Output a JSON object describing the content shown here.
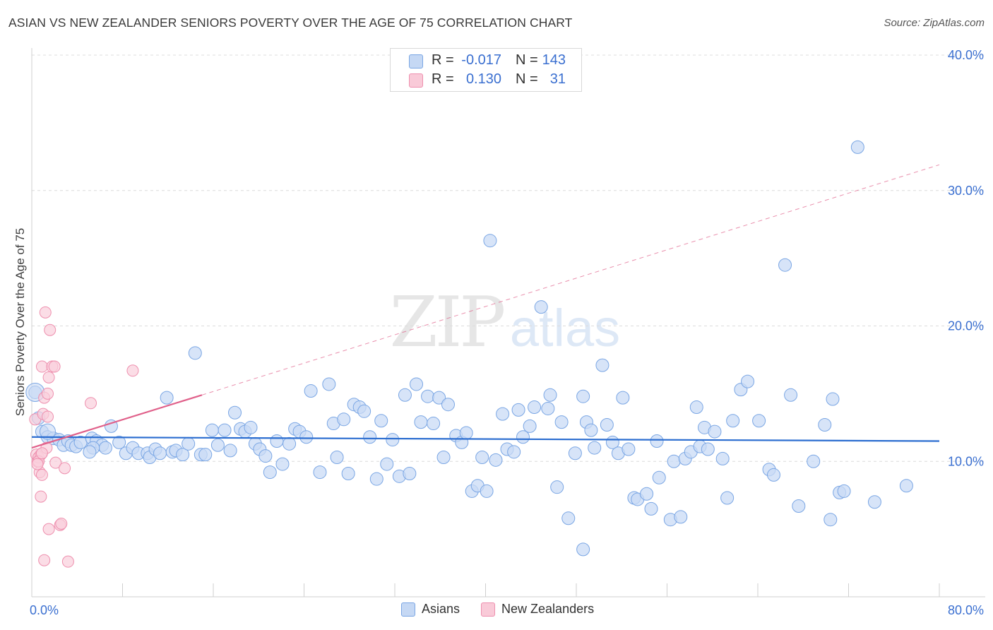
{
  "title": "ASIAN VS NEW ZEALANDER SENIORS POVERTY OVER THE AGE OF 75 CORRELATION CHART",
  "source": "Source: ZipAtlas.com",
  "watermark": {
    "zip": "ZIP",
    "atlas": "atlas"
  },
  "stats": {
    "asians": {
      "r_label": "R =",
      "r": "-0.017",
      "n_label": "N =",
      "n": "143",
      "color": "#7aa6e4"
    },
    "nz": {
      "r_label": "R =",
      "r": "0.130",
      "n_label": "N =",
      "n": "31",
      "color": "#ee8fae"
    }
  },
  "legend": {
    "asians": "Asians",
    "nz": "New Zealanders"
  },
  "chart_data": {
    "type": "scatter",
    "ylabel": "Seniors Poverty Over the Age of 75",
    "xlim": [
      0,
      80
    ],
    "ylim": [
      0,
      40
    ],
    "x_tick_labels": {
      "0": "0.0%",
      "80": "80.0%"
    },
    "y_tick_labels": {
      "10": "10.0%",
      "20": "20.0%",
      "30": "30.0%",
      "40": "40.0%"
    },
    "colors": {
      "asians": "#7aa6e4",
      "asians_line": "#2b6dd0",
      "nz": "#ee8fae",
      "nz_line": "#e0608a"
    },
    "series": [
      {
        "name": "Asians",
        "trend": {
          "x0": 0,
          "y0": 11.8,
          "x1": 80,
          "y1": 11.5
        },
        "points": [
          [
            0.3,
            15.1
          ],
          [
            0.6,
            13.2
          ],
          [
            0.9,
            12.2
          ],
          [
            1.4,
            11.8
          ],
          [
            1.9,
            11.7
          ],
          [
            2.4,
            11.6
          ],
          [
            2.8,
            11.2
          ],
          [
            3.2,
            11.5
          ],
          [
            3.5,
            11.2
          ],
          [
            3.9,
            11.1
          ],
          [
            4.3,
            11.4
          ],
          [
            5.3,
            11.7
          ],
          [
            5.7,
            11.5
          ],
          [
            6.2,
            11.2
          ],
          [
            6.5,
            11.0
          ],
          [
            5.4,
            11.0
          ],
          [
            5.1,
            10.7
          ],
          [
            7.0,
            12.6
          ],
          [
            7.7,
            11.4
          ],
          [
            8.3,
            10.6
          ],
          [
            8.9,
            11.0
          ],
          [
            9.4,
            10.6
          ],
          [
            10.2,
            10.6
          ],
          [
            10.4,
            10.3
          ],
          [
            10.9,
            10.9
          ],
          [
            11.3,
            10.6
          ],
          [
            11.9,
            14.7
          ],
          [
            12.4,
            10.7
          ],
          [
            12.7,
            10.8
          ],
          [
            13.3,
            10.5
          ],
          [
            13.8,
            11.3
          ],
          [
            14.4,
            18.0
          ],
          [
            14.9,
            10.5
          ],
          [
            15.3,
            10.5
          ],
          [
            15.9,
            12.3
          ],
          [
            16.4,
            11.2
          ],
          [
            17.0,
            12.3
          ],
          [
            17.5,
            10.8
          ],
          [
            17.9,
            13.6
          ],
          [
            18.4,
            12.4
          ],
          [
            18.8,
            12.2
          ],
          [
            19.3,
            12.5
          ],
          [
            19.7,
            11.3
          ],
          [
            20.1,
            10.9
          ],
          [
            20.6,
            10.4
          ],
          [
            21.0,
            9.2
          ],
          [
            21.6,
            11.5
          ],
          [
            22.1,
            9.8
          ],
          [
            22.7,
            11.3
          ],
          [
            23.2,
            12.4
          ],
          [
            23.6,
            12.2
          ],
          [
            24.2,
            11.8
          ],
          [
            24.6,
            15.2
          ],
          [
            25.4,
            9.2
          ],
          [
            26.2,
            15.7
          ],
          [
            26.6,
            12.8
          ],
          [
            26.9,
            10.3
          ],
          [
            27.5,
            13.1
          ],
          [
            27.9,
            9.1
          ],
          [
            28.4,
            14.2
          ],
          [
            28.9,
            14.0
          ],
          [
            29.3,
            13.7
          ],
          [
            29.8,
            11.8
          ],
          [
            30.4,
            8.7
          ],
          [
            30.8,
            13.0
          ],
          [
            31.3,
            9.8
          ],
          [
            31.8,
            11.6
          ],
          [
            32.4,
            8.9
          ],
          [
            32.9,
            14.9
          ],
          [
            33.3,
            9.1
          ],
          [
            33.9,
            15.7
          ],
          [
            34.3,
            12.9
          ],
          [
            34.9,
            14.8
          ],
          [
            35.4,
            12.8
          ],
          [
            35.9,
            14.7
          ],
          [
            36.3,
            10.3
          ],
          [
            36.7,
            14.2
          ],
          [
            37.4,
            11.9
          ],
          [
            37.9,
            11.4
          ],
          [
            38.3,
            12.1
          ],
          [
            38.8,
            7.8
          ],
          [
            39.3,
            8.2
          ],
          [
            39.7,
            10.3
          ],
          [
            40.1,
            7.8
          ],
          [
            40.4,
            26.3
          ],
          [
            40.9,
            10.1
          ],
          [
            41.5,
            13.5
          ],
          [
            41.9,
            10.9
          ],
          [
            42.5,
            10.7
          ],
          [
            42.9,
            13.8
          ],
          [
            43.3,
            11.8
          ],
          [
            43.9,
            12.6
          ],
          [
            44.3,
            14.0
          ],
          [
            44.9,
            21.4
          ],
          [
            45.7,
            14.9
          ],
          [
            46.3,
            8.1
          ],
          [
            46.7,
            12.9
          ],
          [
            47.3,
            5.8
          ],
          [
            47.9,
            10.6
          ],
          [
            48.6,
            14.8
          ],
          [
            48.9,
            12.9
          ],
          [
            49.3,
            12.3
          ],
          [
            49.6,
            11.0
          ],
          [
            50.3,
            17.1
          ],
          [
            50.7,
            12.7
          ],
          [
            51.2,
            11.4
          ],
          [
            51.7,
            10.6
          ],
          [
            52.1,
            14.7
          ],
          [
            52.6,
            10.9
          ],
          [
            53.1,
            7.3
          ],
          [
            53.4,
            7.2
          ],
          [
            54.2,
            7.6
          ],
          [
            54.6,
            6.5
          ],
          [
            55.1,
            11.5
          ],
          [
            55.3,
            8.8
          ],
          [
            56.3,
            5.7
          ],
          [
            56.6,
            10.0
          ],
          [
            57.2,
            5.9
          ],
          [
            57.6,
            10.2
          ],
          [
            58.1,
            10.7
          ],
          [
            58.6,
            14.0
          ],
          [
            58.9,
            11.1
          ],
          [
            59.3,
            12.5
          ],
          [
            59.6,
            10.9
          ],
          [
            60.2,
            12.2
          ],
          [
            60.9,
            10.2
          ],
          [
            61.3,
            7.3
          ],
          [
            61.8,
            13.0
          ],
          [
            62.5,
            15.3
          ],
          [
            63.1,
            15.9
          ],
          [
            64.1,
            13.0
          ],
          [
            65.0,
            9.4
          ],
          [
            65.4,
            9.0
          ],
          [
            66.4,
            24.5
          ],
          [
            66.9,
            14.9
          ],
          [
            67.6,
            6.7
          ],
          [
            68.9,
            10.0
          ],
          [
            69.9,
            12.7
          ],
          [
            70.4,
            5.7
          ],
          [
            70.6,
            14.6
          ],
          [
            71.2,
            7.7
          ],
          [
            71.6,
            7.8
          ],
          [
            72.8,
            33.2
          ],
          [
            74.3,
            7.0
          ],
          [
            77.1,
            8.2
          ],
          [
            48.6,
            3.5
          ],
          [
            45.5,
            13.9
          ]
        ]
      },
      {
        "name": "New Zealanders",
        "trend": {
          "x0": 0,
          "y0": 11.0,
          "x1": 15.0,
          "y1": 14.9
        },
        "trend_ext": {
          "x0": 15.0,
          "y0": 14.9,
          "x1": 80,
          "y1": 31.9
        },
        "points": [
          [
            0.3,
            13.1
          ],
          [
            0.4,
            10.5
          ],
          [
            0.5,
            10.0
          ],
          [
            0.6,
            10.3
          ],
          [
            0.7,
            9.2
          ],
          [
            0.8,
            10.5
          ],
          [
            0.9,
            17.0
          ],
          [
            1.0,
            13.5
          ],
          [
            1.1,
            14.7
          ],
          [
            1.2,
            21.0
          ],
          [
            1.3,
            11.0
          ],
          [
            1.4,
            13.3
          ],
          [
            1.4,
            15.0
          ],
          [
            1.5,
            16.2
          ],
          [
            1.6,
            19.7
          ],
          [
            1.8,
            17.0
          ],
          [
            2.0,
            17.0
          ],
          [
            2.1,
            9.9
          ],
          [
            2.5,
            5.3
          ],
          [
            2.6,
            5.4
          ],
          [
            2.9,
            9.5
          ],
          [
            3.2,
            2.6
          ],
          [
            5.2,
            14.3
          ],
          [
            8.9,
            16.7
          ],
          [
            0.8,
            7.4
          ],
          [
            0.9,
            9.0
          ],
          [
            1.5,
            5.0
          ],
          [
            1.1,
            2.7
          ],
          [
            0.6,
            10.0
          ],
          [
            0.5,
            9.8
          ],
          [
            0.9,
            10.6
          ]
        ]
      }
    ]
  }
}
